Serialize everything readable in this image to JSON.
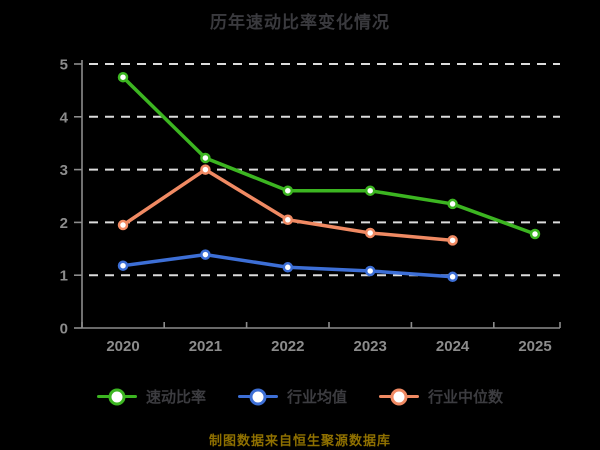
{
  "title": "历年速动比率变化情况",
  "caption": "制图数据来自恒生聚源数据库",
  "colors": {
    "background": "#000000",
    "title": "#3a3a3e",
    "axis": "#8c8c8c",
    "tick_label": "#8c8c8c",
    "gridline": "#dcdcdc",
    "legend_text": "#3c3c40",
    "caption": "#8f7000",
    "marker_fill": "#ffffff"
  },
  "chart_data": {
    "type": "line",
    "title": "历年速动比率变化情况",
    "categories": [
      "2020",
      "2021",
      "2022",
      "2023",
      "2024",
      "2025"
    ],
    "series": [
      {
        "name": "速动比率",
        "color": "#3cb521",
        "values": [
          4.75,
          3.22,
          2.6,
          2.6,
          2.35,
          1.78
        ]
      },
      {
        "name": "行业均值",
        "color": "#3d6fd6",
        "values": [
          1.18,
          1.39,
          1.15,
          1.08,
          0.97,
          null
        ]
      },
      {
        "name": "行业中位数",
        "color": "#f08a63",
        "values": [
          1.95,
          3.0,
          2.05,
          1.8,
          1.66,
          null
        ]
      }
    ],
    "ylim": [
      0,
      5
    ],
    "yticks": [
      0,
      1,
      2,
      3,
      4,
      5
    ],
    "grid": "horizontal-dashed",
    "legend_position": "bottom",
    "marker": "circle-white-fill"
  }
}
